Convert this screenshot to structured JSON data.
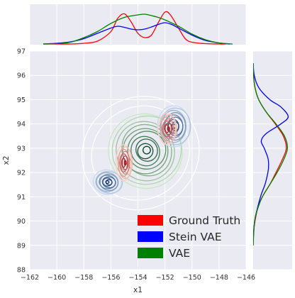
{
  "chart_data": {
    "type": "jointplot",
    "xlabel": "x1",
    "ylabel": "x2",
    "xlim": [
      -162,
      -146
    ],
    "ylim": [
      88,
      97
    ],
    "xticks": [
      -162,
      -160,
      -158,
      -156,
      -154,
      -152,
      -150,
      -148,
      -146
    ],
    "yticks": [
      88,
      89,
      90,
      91,
      92,
      93,
      94,
      95,
      96,
      97
    ],
    "grid": true,
    "legend_position": "lower-right",
    "series": [
      {
        "name": "Ground Truth",
        "color": "#ff0000",
        "x_marginal": [
          [
            -161,
            0.0
          ],
          [
            -159,
            0.0
          ],
          [
            -158,
            0.02
          ],
          [
            -157,
            0.08
          ],
          [
            -156,
            0.35
          ],
          [
            -155.5,
            0.72
          ],
          [
            -155,
            0.85
          ],
          [
            -154.5,
            0.62
          ],
          [
            -154,
            0.3
          ],
          [
            -153.5,
            0.18
          ],
          [
            -153,
            0.25
          ],
          [
            -152.5,
            0.6
          ],
          [
            -152,
            0.9
          ],
          [
            -151.6,
            0.82
          ],
          [
            -151,
            0.45
          ],
          [
            -150.5,
            0.15
          ],
          [
            -150,
            0.05
          ],
          [
            -149,
            0.01
          ],
          [
            -148,
            0.0
          ],
          [
            -147.5,
            0.0
          ]
        ],
        "y_marginal": [
          [
            89.0,
            0.0
          ],
          [
            89.5,
            0.01
          ],
          [
            90.0,
            0.05
          ],
          [
            90.5,
            0.12
          ],
          [
            91.0,
            0.25
          ],
          [
            91.5,
            0.45
          ],
          [
            92.0,
            0.62
          ],
          [
            92.5,
            0.78
          ],
          [
            93.0,
            0.9
          ],
          [
            93.5,
            0.82
          ],
          [
            94.0,
            0.6
          ],
          [
            94.5,
            0.35
          ],
          [
            95.0,
            0.15
          ],
          [
            95.5,
            0.05
          ],
          [
            96.0,
            0.01
          ],
          [
            96.5,
            0.0
          ]
        ],
        "contours": [
          {
            "center": [
              -155,
              92.4
            ],
            "radius": [
              0.55,
              0.75
            ],
            "rotation": 0,
            "levels": 8
          },
          {
            "center": [
              -151.8,
              93.8
            ],
            "radius": [
              0.65,
              0.65
            ],
            "rotation": 0,
            "levels": 8
          }
        ]
      },
      {
        "name": "Stein VAE",
        "color": "#0000ff",
        "x_marginal": [
          [
            -161,
            0.0
          ],
          [
            -160,
            0.02
          ],
          [
            -159,
            0.06
          ],
          [
            -158,
            0.15
          ],
          [
            -157,
            0.3
          ],
          [
            -156,
            0.45
          ],
          [
            -155.5,
            0.5
          ],
          [
            -155,
            0.47
          ],
          [
            -154.5,
            0.42
          ],
          [
            -154,
            0.4
          ],
          [
            -153.5,
            0.42
          ],
          [
            -153,
            0.48
          ],
          [
            -152.5,
            0.55
          ],
          [
            -152,
            0.6
          ],
          [
            -151.5,
            0.55
          ],
          [
            -151,
            0.45
          ],
          [
            -150,
            0.25
          ],
          [
            -149,
            0.1
          ],
          [
            -148,
            0.03
          ],
          [
            -147.2,
            0.0
          ]
        ],
        "y_marginal": [
          [
            89.0,
            0.0
          ],
          [
            90.0,
            0.04
          ],
          [
            91.0,
            0.2
          ],
          [
            91.5,
            0.32
          ],
          [
            92.0,
            0.4
          ],
          [
            92.3,
            0.42
          ],
          [
            92.6,
            0.4
          ],
          [
            93.0,
            0.3
          ],
          [
            93.3,
            0.22
          ],
          [
            93.6,
            0.35
          ],
          [
            94.0,
            0.75
          ],
          [
            94.3,
            0.95
          ],
          [
            94.7,
            0.75
          ],
          [
            95.0,
            0.45
          ],
          [
            95.5,
            0.15
          ],
          [
            96.0,
            0.03
          ],
          [
            96.5,
            0.0
          ]
        ],
        "contours": [
          {
            "center": [
              -156.2,
              91.6
            ],
            "radius": [
              1.05,
              0.5
            ],
            "rotation": -10,
            "levels": 9
          },
          {
            "center": [
              -151.3,
              93.9
            ],
            "radius": [
              1.2,
              0.85
            ],
            "rotation": 0,
            "levels": 9
          }
        ]
      },
      {
        "name": "VAE",
        "color": "#008000",
        "x_marginal": [
          [
            -161,
            0.0
          ],
          [
            -160,
            0.01
          ],
          [
            -159,
            0.05
          ],
          [
            -158,
            0.18
          ],
          [
            -157,
            0.35
          ],
          [
            -156,
            0.58
          ],
          [
            -155,
            0.75
          ],
          [
            -154,
            0.82
          ],
          [
            -153.5,
            0.84
          ],
          [
            -153,
            0.8
          ],
          [
            -152.5,
            0.75
          ],
          [
            -152,
            0.68
          ],
          [
            -151,
            0.5
          ],
          [
            -150,
            0.28
          ],
          [
            -149,
            0.12
          ],
          [
            -148,
            0.03
          ],
          [
            -147,
            0.0
          ]
        ],
        "y_marginal": [
          [
            89.0,
            0.0
          ],
          [
            90.0,
            0.04
          ],
          [
            90.5,
            0.12
          ],
          [
            91.0,
            0.25
          ],
          [
            91.5,
            0.45
          ],
          [
            92.0,
            0.65
          ],
          [
            92.5,
            0.82
          ],
          [
            93.0,
            0.93
          ],
          [
            93.5,
            0.85
          ],
          [
            94.0,
            0.62
          ],
          [
            94.5,
            0.35
          ],
          [
            95.0,
            0.15
          ],
          [
            95.5,
            0.05
          ],
          [
            96.0,
            0.01
          ],
          [
            96.5,
            0.0
          ]
        ],
        "contours": [
          {
            "center": [
              -153.4,
              92.9
            ],
            "radius": [
              2.7,
              1.55
            ],
            "rotation": 35,
            "levels": 10
          }
        ]
      }
    ],
    "outer_contours": [
      {
        "center": [
          -153.8,
          92.8
        ],
        "radius": [
          4.4,
          2.3
        ],
        "rotation": 30
      },
      {
        "center": [
          -153.8,
          92.8
        ],
        "radius": [
          3.7,
          1.9
        ],
        "rotation": 30
      }
    ]
  }
}
